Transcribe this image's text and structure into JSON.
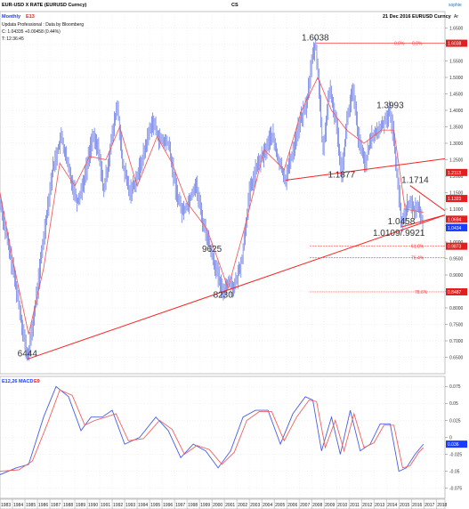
{
  "header": {
    "title": "EUR-USD X RATE (EURUSD Curncy)",
    "center": "CS",
    "brand": "sophie",
    "periodicity": "Monthly",
    "indicator_label": "E13",
    "date_security": "21 Dec 2016 EURUSD Curncy",
    "axis_tag": "Ar",
    "source": "Updata Professional : Data by Bloomberg",
    "ohlc": "C: 1.04335 +0.00458 (0.44%)",
    "time": "T: 12:36:45"
  },
  "macd": {
    "label": "E12,26 MACD",
    "signal_label": "E9",
    "yticks": [
      "0.075",
      "0.05",
      "0.025",
      "0",
      "-0.025",
      "-0.05",
      "-0.075"
    ],
    "tag_label": "0.036"
  },
  "price_tags": [
    {
      "label": "1.6038",
      "value": 1.6038,
      "color": "#e02020"
    },
    {
      "label": "1.2113",
      "value": 1.2113,
      "color": "#e02020"
    },
    {
      "label": "1.1323",
      "value": 1.1323,
      "color": "#e02020"
    },
    {
      "label": "1.0694",
      "value": 1.0694,
      "color": "#e02020"
    },
    {
      "label": "1.0442",
      "value": 1.0442,
      "color": "#e02020"
    },
    {
      "label": "1.0434",
      "value": 1.0434,
      "color": "#1a3cff"
    },
    {
      "label": "0.9873",
      "value": 0.9873,
      "color": "#e02020"
    },
    {
      "label": "0.8487",
      "value": 0.8487,
      "color": "#e02020"
    }
  ],
  "fib_levels": [
    {
      "label": "0.0%",
      "label2": "0.0%",
      "value": 1.6038
    },
    {
      "label": "61.8%",
      "value": 0.9873
    },
    {
      "label": "76.4%",
      "value": 0.952
    },
    {
      "label": "78.6%",
      "value": 0.8487
    }
  ],
  "annotations": [
    {
      "text": "1.6038",
      "x": 2008.3,
      "y": 1.6038
    },
    {
      "text": "1.3993",
      "x": 2014.3,
      "y": 1.3993
    },
    {
      "text": "1.1877",
      "x": 2010.4,
      "y": 1.1877
    },
    {
      "text": "1.1714",
      "x": 2016.3,
      "y": 1.1714
    },
    {
      "text": "1.0458",
      "x": 2015.2,
      "y": 1.0458
    },
    {
      "text": "1.0109/.9921",
      "x": 2015.0,
      "y": 1.0109
    },
    {
      "text": "9625",
      "x": 2000.0,
      "y": 0.9625
    },
    {
      "text": "8230",
      "x": 2000.9,
      "y": 0.823
    },
    {
      "text": "6444",
      "x": 1985.2,
      "y": 0.6444
    }
  ],
  "colors": {
    "price": "#5b6ee6",
    "ma": "#f06060",
    "trend": "#ff2020",
    "macd": "#4a5ee0",
    "signal": "#f06060",
    "grid": "#dedede"
  },
  "chart_data": {
    "type": "line",
    "title": "EUR-USD X RATE (EURUSD Curncy)",
    "xlabel": "",
    "ylabel": "",
    "xlim": [
      1983,
      2018.7
    ],
    "ylim": [
      0.6,
      1.7
    ],
    "yticks": [
      1.65,
      1.6,
      1.55,
      1.5,
      1.45,
      1.4,
      1.35,
      1.3,
      1.25,
      1.2,
      1.15,
      1.1,
      1.05,
      1.0,
      0.95,
      0.9,
      0.85,
      0.8,
      0.75,
      0.7,
      0.65
    ],
    "xticks": [
      "1983",
      "1984",
      "1985",
      "1986",
      "1987",
      "1988",
      "1989",
      "1990",
      "1991",
      "1992",
      "1993",
      "1994",
      "1995",
      "1996",
      "1997",
      "1998",
      "1999",
      "2000",
      "2001",
      "2002",
      "2003",
      "2004",
      "2005",
      "2006",
      "2007",
      "2008",
      "2009",
      "2010",
      "2011",
      "2012",
      "2013",
      "2014",
      "2015",
      "2016",
      "2017",
      "2018"
    ],
    "grid": true,
    "price_series": {
      "name": "EURUSD",
      "x": [
        1983.0,
        1983.6,
        1984.3,
        1985.0,
        1985.2,
        1985.8,
        1986.5,
        1987.2,
        1987.9,
        1988.5,
        1989.2,
        1989.8,
        1990.4,
        1990.9,
        1991.3,
        1991.9,
        1992.4,
        1992.8,
        1993.4,
        1994.0,
        1994.6,
        1995.2,
        1995.8,
        1996.5,
        1997.1,
        1997.6,
        1998.1,
        1998.7,
        1999.2,
        1999.8,
        2000.3,
        2000.8,
        2001.3,
        2001.8,
        2002.4,
        2003.0,
        2003.6,
        2004.2,
        2004.8,
        2005.3,
        2005.9,
        2006.5,
        2007.0,
        2007.6,
        2008.0,
        2008.3,
        2008.6,
        2008.9,
        2009.4,
        2009.9,
        2010.4,
        2010.9,
        2011.3,
        2011.8,
        2012.3,
        2012.8,
        2013.4,
        2014.0,
        2014.3,
        2014.7,
        2015.2,
        2015.7,
        2016.2,
        2016.6,
        2016.97
      ],
      "y": [
        1.12,
        1.0,
        0.86,
        0.69,
        0.6444,
        0.8,
        1.02,
        1.22,
        1.32,
        1.22,
        1.12,
        1.2,
        1.32,
        1.28,
        1.15,
        1.3,
        1.42,
        1.24,
        1.15,
        1.2,
        1.28,
        1.37,
        1.31,
        1.3,
        1.16,
        1.09,
        1.12,
        1.18,
        1.07,
        0.99,
        0.92,
        0.85,
        0.88,
        0.86,
        0.95,
        1.15,
        1.23,
        1.27,
        1.33,
        1.25,
        1.19,
        1.28,
        1.36,
        1.42,
        1.55,
        1.6038,
        1.46,
        1.27,
        1.46,
        1.38,
        1.21,
        1.39,
        1.46,
        1.3,
        1.24,
        1.32,
        1.34,
        1.38,
        1.3993,
        1.27,
        1.05,
        1.12,
        1.1,
        1.11,
        1.0434
      ]
    },
    "ma_series": {
      "name": "E13",
      "x": [
        1983.0,
        1984.0,
        1985.3,
        1986.5,
        1987.8,
        1989.0,
        1990.2,
        1991.5,
        1992.6,
        1994.0,
        1995.6,
        1996.8,
        1998.0,
        1999.6,
        2001.3,
        2002.6,
        2004.2,
        2005.8,
        2007.2,
        2008.5,
        2009.6,
        2010.8,
        2012.2,
        2013.6,
        2014.6,
        2015.5,
        2016.97
      ],
      "y": [
        1.15,
        0.95,
        0.72,
        0.92,
        1.24,
        1.17,
        1.26,
        1.25,
        1.35,
        1.17,
        1.32,
        1.24,
        1.12,
        1.04,
        0.86,
        1.04,
        1.28,
        1.22,
        1.4,
        1.5,
        1.4,
        1.34,
        1.3,
        1.34,
        1.34,
        1.1,
        1.09
      ]
    },
    "trend_lines": [
      {
        "x1": 1985.2,
        "y1": 0.6444,
        "x2": 2018.7,
        "y2": 1.082
      },
      {
        "x1": 2005.9,
        "y1": 1.1877,
        "x2": 2018.7,
        "y2": 1.253
      },
      {
        "x1": 2015.9,
        "y1": 1.1714,
        "x2": 2018.7,
        "y2": 1.095
      },
      {
        "x1": 2015.2,
        "y1": 1.0458,
        "x2": 2018.7,
        "y2": 1.082
      }
    ],
    "macd_series": {
      "name": "MACD",
      "x": [
        1983.0,
        1984.3,
        1985.3,
        1986.5,
        1987.5,
        1988.5,
        1989.5,
        1990.3,
        1991.2,
        1992.0,
        1993.0,
        1994.2,
        1995.5,
        1996.5,
        1997.5,
        1998.5,
        1999.5,
        2000.5,
        2001.5,
        2002.5,
        2003.5,
        2004.5,
        2005.5,
        2006.5,
        2007.5,
        2008.1,
        2008.8,
        2009.6,
        2010.3,
        2011.1,
        2011.9,
        2012.7,
        2013.5,
        2014.3,
        2015.0,
        2015.6,
        2016.3,
        2016.97
      ],
      "y": [
        -0.055,
        -0.045,
        -0.04,
        0.03,
        0.075,
        0.06,
        0.01,
        0.03,
        0.03,
        0.04,
        -0.01,
        0.0,
        0.03,
        0.01,
        -0.03,
        -0.01,
        -0.02,
        -0.045,
        -0.02,
        0.03,
        0.04,
        0.04,
        -0.01,
        0.035,
        0.06,
        0.055,
        -0.02,
        0.03,
        -0.025,
        0.04,
        -0.02,
        -0.01,
        0.02,
        0.02,
        -0.05,
        -0.045,
        -0.025,
        -0.01
      ]
    },
    "signal_series": {
      "name": "E9",
      "x": [
        1983.0,
        1984.5,
        1985.6,
        1986.8,
        1987.8,
        1988.8,
        1989.8,
        1990.6,
        1991.5,
        1992.3,
        1993.3,
        1994.5,
        1995.8,
        1996.8,
        1997.8,
        1998.8,
        1999.8,
        2000.8,
        2001.8,
        2002.8,
        2003.8,
        2004.8,
        2005.8,
        2006.8,
        2007.8,
        2008.4,
        2009.1,
        2009.9,
        2010.6,
        2011.4,
        2012.2,
        2013.0,
        2013.8,
        2014.6,
        2015.3,
        2015.9,
        2016.6,
        2016.97
      ],
      "y": [
        -0.05,
        -0.048,
        -0.035,
        0.02,
        0.07,
        0.062,
        0.018,
        0.025,
        0.03,
        0.035,
        -0.005,
        -0.002,
        0.025,
        0.012,
        -0.025,
        -0.012,
        -0.018,
        -0.04,
        -0.022,
        0.025,
        0.038,
        0.038,
        -0.005,
        0.03,
        0.055,
        0.053,
        -0.015,
        0.025,
        -0.02,
        0.035,
        -0.015,
        -0.008,
        0.018,
        0.018,
        -0.045,
        -0.042,
        -0.022,
        -0.015
      ]
    },
    "macd_ylim": [
      -0.09,
      0.09
    ]
  }
}
